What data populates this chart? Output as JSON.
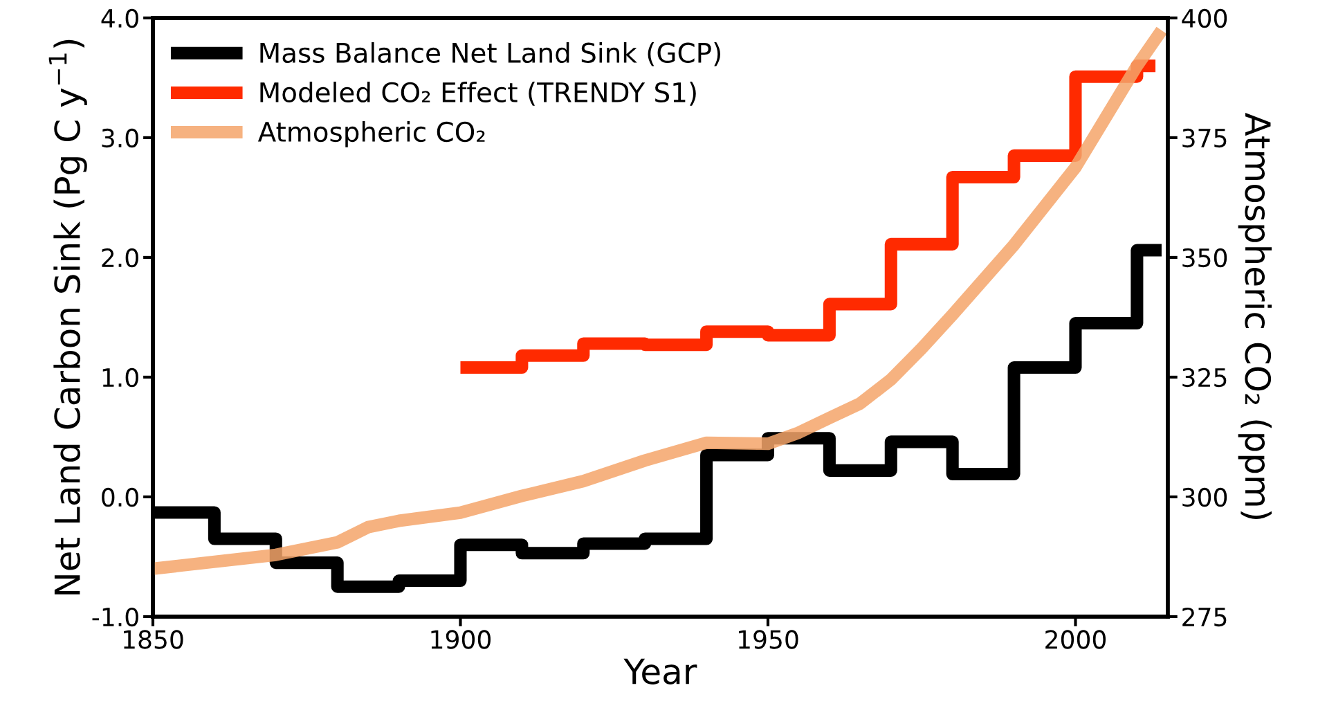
{
  "chart_data": {
    "type": "step",
    "xlabel": "Year",
    "ylabel": "Net Land Carbon Sink (Pg C y$^{−1}$)",
    "y2label": "Atmospheric CO₂ (ppm)",
    "xlim": [
      1850,
      2015
    ],
    "xticks": [
      1850,
      1900,
      1950,
      2000
    ],
    "ylim": [
      -1,
      4
    ],
    "yticks": [
      {
        "value": -1,
        "label": "-1.0"
      },
      {
        "value": 0,
        "label": "0.0"
      },
      {
        "value": 1,
        "label": "1.0"
      },
      {
        "value": 2,
        "label": "2.0"
      },
      {
        "value": 3,
        "label": "3.0"
      },
      {
        "value": 4,
        "label": "4.0"
      }
    ],
    "y2lim": [
      275,
      400
    ],
    "y2ticks": [
      275,
      300,
      325,
      350,
      375,
      400
    ],
    "legend": "top left",
    "grid": false,
    "series": [
      {
        "name": "Mass Balance Net Land Sink (GCP)",
        "color": "#000000",
        "x": [
          1850,
          1860,
          1870,
          1880,
          1890,
          1900,
          1910,
          1920,
          1930,
          1940,
          1950,
          1960,
          1970,
          1980,
          1990,
          2000,
          2010,
          2014
        ],
        "values": [
          -0.13,
          -0.35,
          -0.55,
          -0.75,
          -0.7,
          -0.4,
          -0.47,
          -0.39,
          -0.35,
          0.35,
          0.49,
          0.22,
          0.46,
          0.19,
          1.08,
          1.45,
          2.06,
          2.06
        ]
      },
      {
        "name": "Modeled CO₂ Effect (TRENDY S1)",
        "color": "#ff2a00",
        "x": [
          1900,
          1910,
          1920,
          1930,
          1940,
          1950,
          1960,
          1970,
          1980,
          1990,
          2000,
          2010,
          2013
        ],
        "values": [
          1.08,
          1.18,
          1.28,
          1.27,
          1.38,
          1.35,
          1.61,
          2.11,
          2.67,
          2.85,
          3.51,
          3.6,
          3.6
        ]
      },
      {
        "name": "Atmospheric CO₂",
        "type": "line",
        "axis": "y2",
        "color": "#f5a56a",
        "x": [
          1850,
          1870,
          1880,
          1885,
          1890,
          1900,
          1910,
          1920,
          1930,
          1940,
          1950,
          1955,
          1960,
          1965,
          1970,
          1975,
          1980,
          1990,
          2000,
          2010,
          2014
        ],
        "values": [
          285,
          287.9,
          290.5,
          293.7,
          295,
          296.7,
          300.2,
          303.3,
          307.6,
          311.3,
          311.1,
          313.4,
          316.5,
          319.5,
          324.5,
          331,
          338,
          352.6,
          368.8,
          390,
          397.4
        ]
      }
    ]
  }
}
